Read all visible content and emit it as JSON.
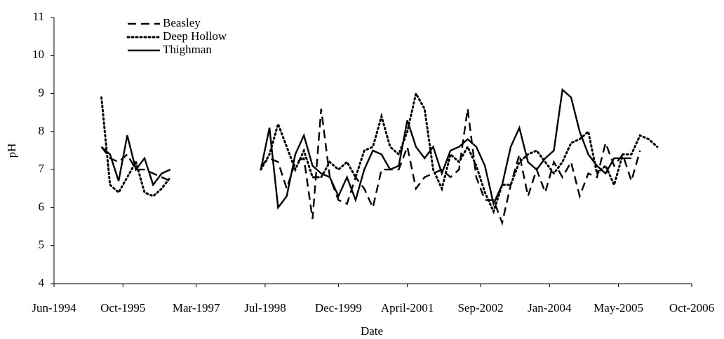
{
  "chart_data": {
    "type": "line",
    "x_label": "Date",
    "y_label": "pH",
    "x": [
      "1995-05",
      "1995-07",
      "1995-09",
      "1995-11",
      "1996-01",
      "1996-03",
      "1996-05",
      "1996-07",
      "1996-09",
      "1997-06",
      "1998-06",
      "1998-08",
      "1998-10",
      "1998-12",
      "1999-02",
      "1999-04",
      "1999-06",
      "1999-08",
      "1999-10",
      "1999-12",
      "2000-02",
      "2000-04",
      "2000-06",
      "2000-08",
      "2000-10",
      "2000-12",
      "2001-02",
      "2001-04",
      "2001-06",
      "2001-08",
      "2001-10",
      "2001-12",
      "2002-02",
      "2002-04",
      "2002-06",
      "2002-08",
      "2002-10",
      "2002-12",
      "2003-02",
      "2003-04",
      "2003-06",
      "2003-08",
      "2003-10",
      "2003-12",
      "2004-02",
      "2004-04",
      "2004-06",
      "2004-08",
      "2004-10",
      "2004-12",
      "2005-02",
      "2005-04",
      "2005-06",
      "2005-08",
      "2005-10",
      "2005-12",
      "2006-02"
    ],
    "series": [
      {
        "name": "Beasley",
        "color": "#000000",
        "style": "dashed",
        "values": [
          7.6,
          7.3,
          7.2,
          7.4,
          7.0,
          7.0,
          6.9,
          6.8,
          6.7,
          null,
          7.1,
          7.3,
          7.2,
          6.5,
          7.2,
          7.3,
          5.7,
          8.6,
          6.8,
          6.2,
          6.1,
          6.8,
          6.5,
          6.0,
          7.0,
          7.0,
          7.0,
          7.6,
          6.5,
          6.8,
          6.9,
          7.0,
          6.8,
          7.0,
          8.6,
          6.8,
          6.2,
          6.2,
          5.6,
          6.6,
          7.4,
          6.3,
          7.0,
          6.4,
          7.2,
          6.8,
          7.2,
          6.3,
          6.9,
          6.8,
          7.7,
          7.1,
          7.4,
          6.7,
          7.5,
          null,
          null
        ]
      },
      {
        "name": "Deep Hollow",
        "color": "#000000",
        "style": "dotted",
        "values": [
          8.9,
          6.6,
          6.4,
          6.8,
          7.2,
          6.4,
          6.3,
          6.5,
          6.8,
          null,
          7.0,
          7.4,
          8.2,
          7.6,
          7.0,
          7.5,
          6.8,
          6.8,
          7.2,
          7.0,
          7.2,
          6.8,
          7.5,
          7.6,
          8.4,
          7.6,
          7.4,
          8.0,
          9.0,
          8.6,
          7.0,
          6.5,
          7.4,
          7.2,
          7.6,
          7.1,
          6.4,
          5.9,
          6.6,
          6.6,
          7.2,
          7.4,
          7.5,
          7.2,
          6.9,
          7.2,
          7.7,
          7.8,
          8.0,
          6.9,
          7.1,
          6.6,
          7.4,
          7.4,
          7.9,
          7.8,
          7.6
        ]
      },
      {
        "name": "Thighman",
        "color": "#000000",
        "style": "solid",
        "values": [
          7.6,
          7.4,
          6.7,
          7.9,
          7.0,
          7.3,
          6.6,
          6.9,
          7.0,
          null,
          7.0,
          8.1,
          6.0,
          6.3,
          7.4,
          7.9,
          7.1,
          6.9,
          6.8,
          6.3,
          6.8,
          6.2,
          7.0,
          7.5,
          7.4,
          7.0,
          7.1,
          8.3,
          7.6,
          7.3,
          7.6,
          6.9,
          7.5,
          7.6,
          7.8,
          7.6,
          7.1,
          6.1,
          6.6,
          7.6,
          8.1,
          7.2,
          7.0,
          7.3,
          7.5,
          9.1,
          8.9,
          8.0,
          7.4,
          7.1,
          6.9,
          7.3,
          7.3,
          7.3,
          null,
          null,
          null
        ]
      }
    ],
    "xlim": [
      "1994-06",
      "2006-10"
    ],
    "xticks": [
      {
        "value": "1994-06",
        "label": "Jun-1994"
      },
      {
        "value": "1995-10",
        "label": "Oct-1995"
      },
      {
        "value": "1997-03",
        "label": "Mar-1997"
      },
      {
        "value": "1998-07",
        "label": "Jul-1998"
      },
      {
        "value": "1999-12",
        "label": "Dec-1999"
      },
      {
        "value": "2001-04",
        "label": "April-2001"
      },
      {
        "value": "2002-09",
        "label": "Sep-2002"
      },
      {
        "value": "2004-01",
        "label": "Jan-2004"
      },
      {
        "value": "2005-05",
        "label": "May-2005"
      },
      {
        "value": "2006-10",
        "label": "Oct-2006"
      }
    ],
    "ylim": [
      4,
      11
    ],
    "yticks": [
      4,
      5,
      6,
      7,
      8,
      9,
      10,
      11
    ],
    "grid": false,
    "legend": "upper left"
  }
}
